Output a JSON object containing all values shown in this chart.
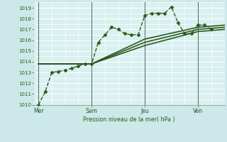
{
  "bg_color": "#cce8e8",
  "plot_bg_color": "#d8f0f0",
  "grid_color": "#ffffff",
  "line_color": "#2d5a1e",
  "vline_color": "#4a6a5a",
  "ylabel": "Pression niveau de la mer( hPa )",
  "ylim": [
    1010,
    1019.5
  ],
  "yticks": [
    1010,
    1011,
    1012,
    1013,
    1014,
    1015,
    1016,
    1017,
    1018,
    1019
  ],
  "xtick_labels": [
    "Mer",
    "Sam",
    "Jeu",
    "Ven"
  ],
  "xtick_positions": [
    0,
    24,
    48,
    72
  ],
  "vline_positions": [
    0,
    24,
    48,
    72
  ],
  "xlim": [
    -2,
    84
  ],
  "series": [
    {
      "x": [
        0,
        3,
        6,
        9,
        12,
        15,
        18,
        21,
        24,
        27,
        30,
        33,
        36,
        39,
        42,
        45,
        48,
        51,
        54,
        57,
        60,
        63,
        66,
        69,
        72,
        75,
        78
      ],
      "y": [
        1010.0,
        1011.2,
        1013.0,
        1013.1,
        1013.2,
        1013.4,
        1013.6,
        1013.8,
        1013.8,
        1015.8,
        1016.5,
        1017.2,
        1017.0,
        1016.6,
        1016.5,
        1016.5,
        1018.3,
        1018.5,
        1018.5,
        1018.5,
        1019.1,
        1017.6,
        1016.6,
        1016.6,
        1017.4,
        1017.4,
        1017.0
      ],
      "marker": "D",
      "markersize": 2.5,
      "linewidth": 1.0,
      "linestyle": "--"
    },
    {
      "x": [
        0,
        24,
        48,
        72,
        84
      ],
      "y": [
        1013.8,
        1013.8,
        1015.5,
        1016.8,
        1017.0
      ],
      "marker": null,
      "markersize": 0,
      "linewidth": 1.2,
      "linestyle": "-"
    },
    {
      "x": [
        0,
        24,
        48,
        72,
        84
      ],
      "y": [
        1013.8,
        1013.8,
        1015.8,
        1017.0,
        1017.2
      ],
      "marker": null,
      "markersize": 0,
      "linewidth": 1.2,
      "linestyle": "-"
    },
    {
      "x": [
        0,
        24,
        48,
        72,
        84
      ],
      "y": [
        1013.8,
        1013.8,
        1016.1,
        1017.2,
        1017.4
      ],
      "marker": null,
      "markersize": 0,
      "linewidth": 1.2,
      "linestyle": "-"
    }
  ]
}
